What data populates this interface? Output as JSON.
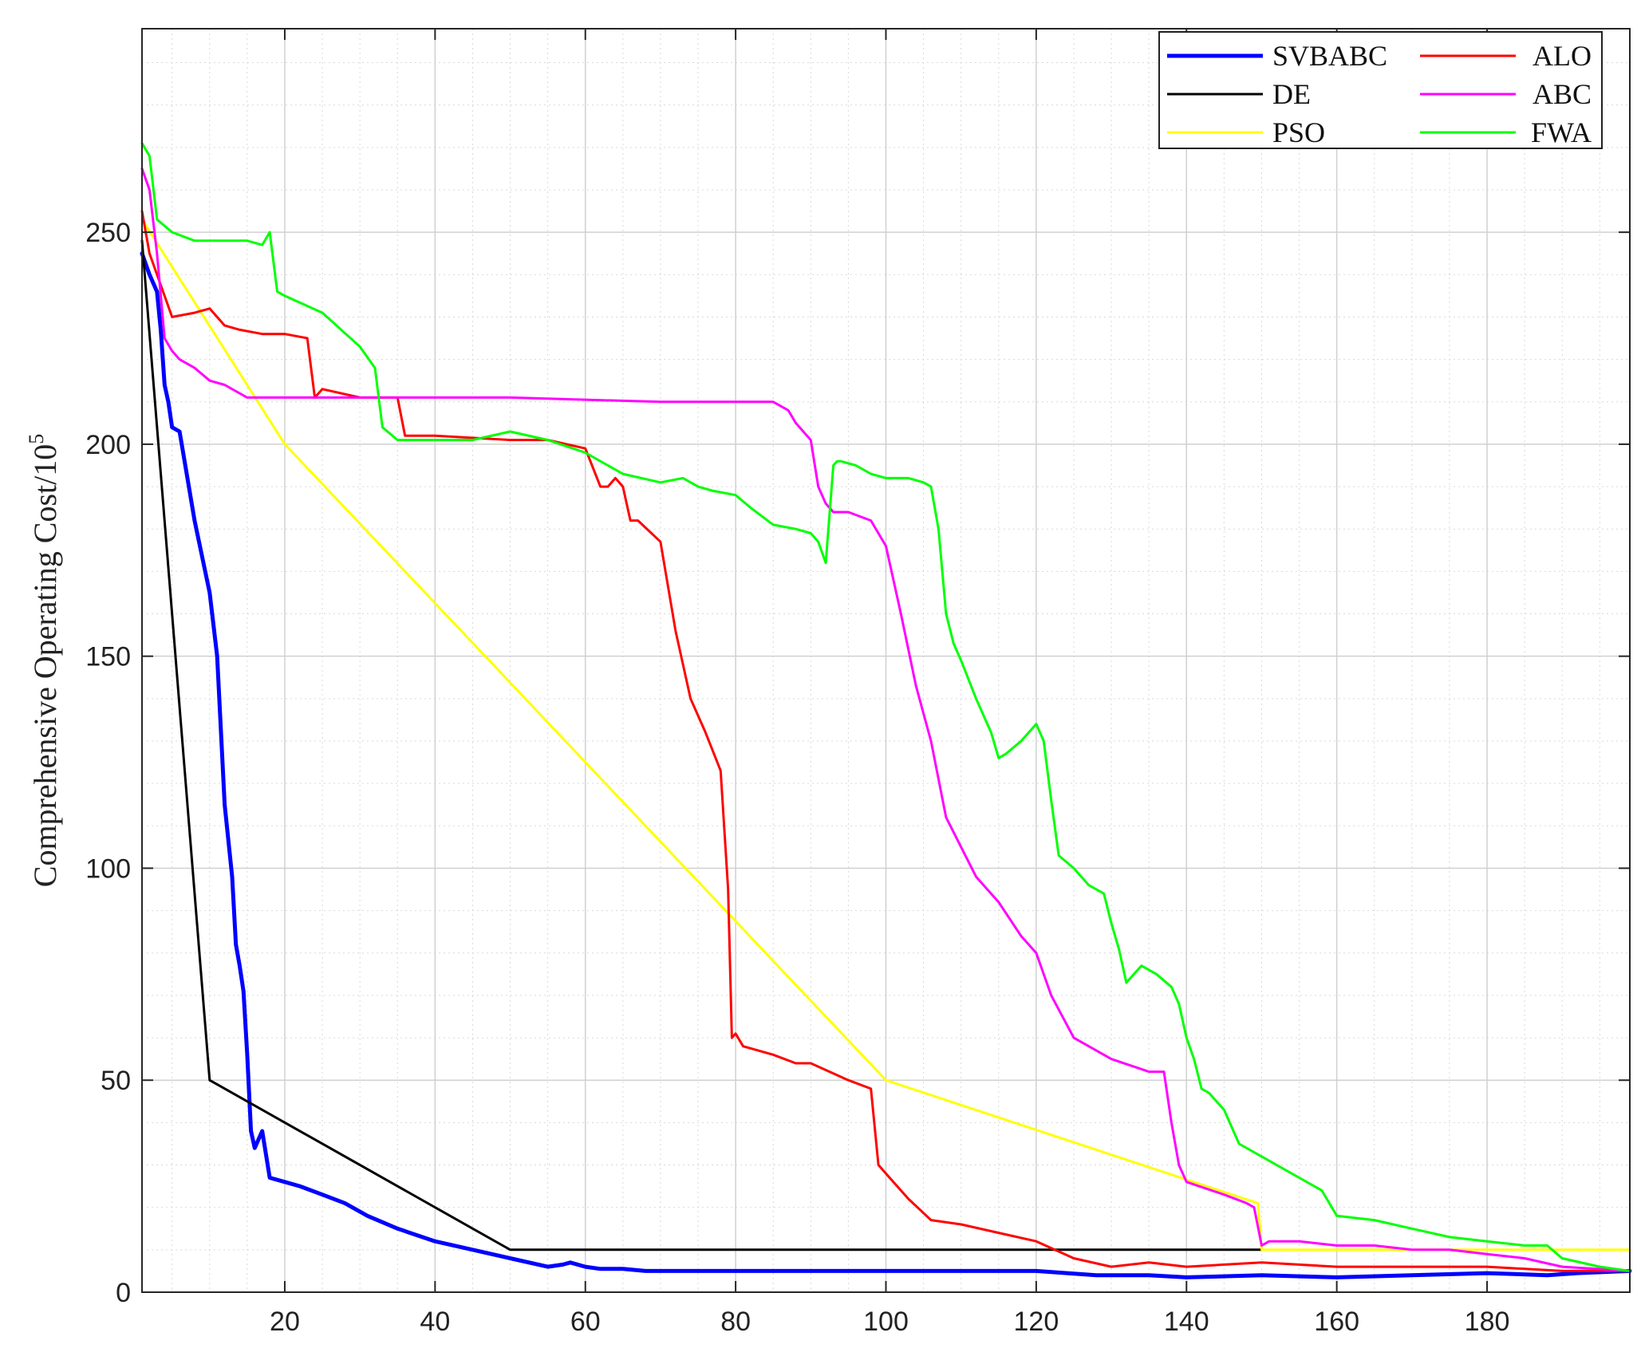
{
  "chart_data": {
    "type": "line",
    "title": "",
    "xlabel": "",
    "ylabel": "Comprehensive Operating Cost/10",
    "ylabel_exponent": "5",
    "xlim": [
      1,
      199
    ],
    "ylim": [
      0,
      298
    ],
    "xticks": [
      20,
      40,
      60,
      80,
      100,
      120,
      140,
      160,
      180
    ],
    "yticks": [
      0,
      50,
      100,
      150,
      200,
      250
    ],
    "grid": true,
    "minor_grid": true,
    "legend_position": "top-right",
    "series": [
      {
        "name": "SVBABC",
        "color": "#0000ff",
        "linewidth": 5,
        "x": [
          1,
          2,
          3,
          3.5,
          4,
          4.5,
          5,
          6,
          8,
          10,
          11,
          12,
          13,
          13.5,
          14,
          14.5,
          15,
          15.5,
          16,
          17,
          18,
          20,
          22,
          25,
          28,
          31,
          35,
          40,
          45,
          50,
          55,
          57,
          58,
          60,
          62,
          65,
          68,
          80,
          100,
          120,
          128,
          135,
          140,
          150,
          160,
          170,
          180,
          188,
          192,
          199
        ],
        "y": [
          245,
          240,
          236,
          227,
          214,
          210,
          204,
          203,
          182,
          165,
          150,
          115,
          98,
          82,
          77,
          71,
          56,
          38,
          34,
          38,
          27,
          26,
          25,
          23,
          21,
          18,
          15,
          12,
          10,
          8,
          6,
          6.5,
          7,
          6,
          5.5,
          5.5,
          5,
          5,
          5,
          5,
          4,
          4,
          3.5,
          4,
          3.5,
          4,
          4.5,
          4,
          4.5,
          5
        ]
      },
      {
        "name": "DE",
        "color": "#000000",
        "linewidth": 3,
        "x": [
          1,
          10,
          50,
          150
        ],
        "y": [
          248,
          50,
          10,
          10
        ]
      },
      {
        "name": "PSO",
        "color": "#ffff00",
        "linewidth": 3,
        "x": [
          1,
          20,
          100,
          149.5,
          150,
          199
        ],
        "y": [
          253,
          200,
          50,
          21,
          10,
          10
        ]
      },
      {
        "name": "ALO",
        "color": "#ff0000",
        "linewidth": 3,
        "x": [
          1,
          2,
          5,
          8,
          10,
          12,
          14,
          17,
          20,
          23,
          24,
          25,
          30,
          35,
          36,
          40,
          50,
          55,
          60,
          62,
          63,
          64,
          65,
          66,
          67,
          70,
          72,
          74,
          76,
          78,
          79,
          79.5,
          80,
          81,
          85,
          88,
          90,
          95,
          98,
          99,
          100,
          103,
          106,
          110,
          115,
          120,
          125,
          130,
          135,
          140,
          150,
          160,
          170,
          180,
          190,
          199
        ],
        "y": [
          255,
          245,
          230,
          231,
          232,
          228,
          227,
          226,
          226,
          225,
          211,
          213,
          211,
          211,
          202,
          202,
          201,
          201,
          199,
          190,
          190,
          192,
          190,
          182,
          182,
          177,
          156,
          140,
          132,
          123,
          95,
          60,
          61,
          58,
          56,
          54,
          54,
          50,
          48,
          30,
          28,
          22,
          17,
          16,
          14,
          12,
          8,
          6,
          7,
          6,
          7,
          6,
          6,
          6,
          5,
          5
        ]
      },
      {
        "name": "ABC",
        "color": "#ff00ff",
        "linewidth": 3,
        "x": [
          1,
          2,
          3,
          4,
          5,
          6,
          8,
          10,
          12,
          15,
          20,
          30,
          50,
          70,
          80,
          85,
          87,
          88,
          89,
          90,
          91,
          92,
          93,
          95,
          98,
          100,
          102,
          104,
          106,
          108,
          110,
          112,
          115,
          118,
          120,
          122,
          125,
          130,
          135,
          137,
          138,
          139,
          140,
          145,
          148,
          149,
          150,
          151,
          155,
          160,
          165,
          170,
          175,
          180,
          185,
          190,
          199
        ],
        "y": [
          265,
          260,
          245,
          225,
          222,
          220,
          218,
          215,
          214,
          211,
          211,
          211,
          211,
          210,
          210,
          210,
          208,
          205,
          203,
          201,
          190,
          186,
          184,
          184,
          182,
          176,
          160,
          143,
          130,
          112,
          105,
          98,
          92,
          84,
          80,
          70,
          60,
          55,
          52,
          52,
          40,
          30,
          26,
          23,
          21,
          20,
          11,
          12,
          12,
          11,
          11,
          10,
          10,
          9,
          8,
          6,
          5
        ]
      },
      {
        "name": "FWA",
        "color": "#00ff00",
        "linewidth": 3,
        "x": [
          1,
          2,
          3,
          5,
          8,
          12,
          15,
          17,
          18,
          19,
          20,
          25,
          30,
          32,
          33,
          35,
          40,
          45,
          50,
          55,
          60,
          65,
          70,
          73,
          75,
          77,
          80,
          82,
          85,
          88,
          90,
          91,
          92,
          93,
          93.5,
          94,
          96,
          98,
          100,
          103,
          105,
          106,
          107,
          108,
          109,
          110,
          112,
          114,
          115,
          116,
          118,
          120,
          121,
          122,
          123,
          125,
          127,
          129,
          130,
          131,
          132,
          133,
          134,
          136,
          138,
          139,
          140,
          141,
          142,
          143,
          145,
          147,
          150,
          155,
          158,
          160,
          165,
          170,
          175,
          180,
          185,
          188,
          190,
          195,
          199
        ],
        "y": [
          271,
          268,
          253,
          250,
          248,
          248,
          248,
          247,
          250,
          236,
          235,
          231,
          223,
          218,
          204,
          201,
          201,
          201,
          203,
          201,
          198,
          193,
          191,
          192,
          190,
          189,
          188,
          185,
          181,
          180,
          179,
          177,
          172,
          195,
          196,
          196,
          195,
          193,
          192,
          192,
          191,
          190,
          180,
          160,
          153,
          149,
          140,
          132,
          126,
          127,
          130,
          134,
          130,
          116,
          103,
          100,
          96,
          94,
          87,
          81,
          73,
          75,
          77,
          75,
          72,
          68,
          60,
          55,
          48,
          47,
          43,
          35,
          32,
          27,
          24,
          18,
          17,
          15,
          13,
          12,
          11,
          11,
          8,
          6,
          5
        ]
      }
    ]
  }
}
